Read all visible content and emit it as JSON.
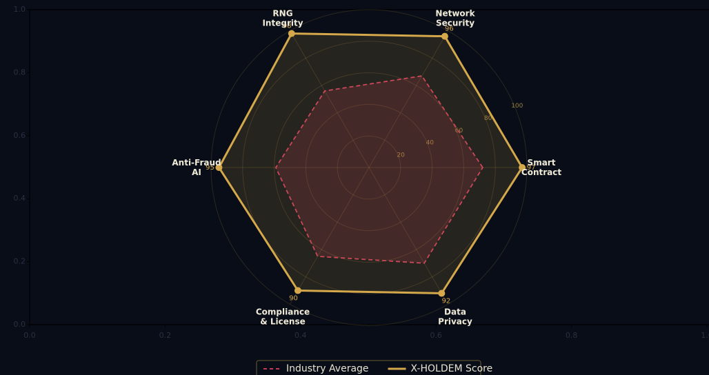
{
  "chart_data": {
    "type": "radar",
    "categories": [
      [
        "Smart",
        "Contract"
      ],
      [
        "Network",
        "Security"
      ],
      [
        "RNG",
        "Integrity"
      ],
      [
        "Anti-Fraud",
        "AI"
      ],
      [
        "Compliance",
        "& License"
      ],
      [
        "Data",
        "Privacy"
      ]
    ],
    "series": [
      {
        "name": "Industry Average",
        "color": "#c8385a",
        "dash": true,
        "values": [
          72,
          67,
          56,
          59,
          65,
          70
        ]
      },
      {
        "name": "X-HOLDEM Score",
        "color": "#d4a84b",
        "dash": false,
        "values": [
          97,
          96,
          98,
          95,
          90,
          92
        ],
        "show_value_labels": true
      }
    ],
    "rlim": [
      0,
      100
    ],
    "rticks": [
      20,
      40,
      60,
      80,
      100
    ],
    "xlim": [
      0,
      1
    ],
    "xticks": [
      {
        "value": 0,
        "label": "0.0"
      },
      {
        "value": 0.2,
        "label": "0.2"
      },
      {
        "value": 0.4,
        "label": "0.4"
      },
      {
        "value": 0.6,
        "label": "0.6"
      },
      {
        "value": 0.8,
        "label": "0.8"
      },
      {
        "value": 1,
        "label": "1.0"
      }
    ],
    "ylim": [
      0,
      1
    ],
    "yticks": [
      {
        "value": 0,
        "label": "0.0"
      },
      {
        "value": 0.2,
        "label": "0.2"
      },
      {
        "value": 0.4,
        "label": "0.4"
      },
      {
        "value": 0.6,
        "label": "0.6"
      },
      {
        "value": 0.8,
        "label": "0.8"
      },
      {
        "value": 1,
        "label": "1.0"
      }
    ],
    "legend": "bottom"
  }
}
